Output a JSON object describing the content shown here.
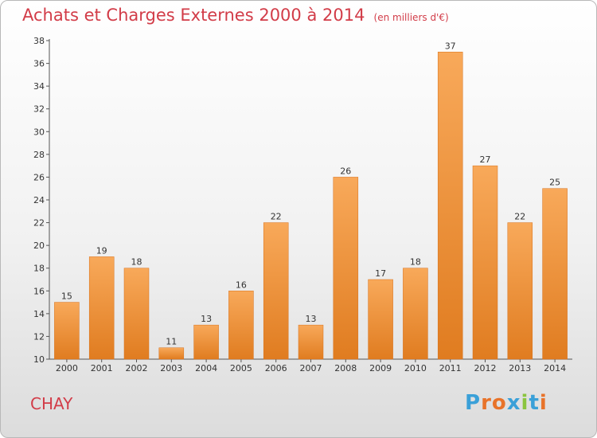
{
  "header": {
    "title": "Achats et Charges Externes 2000 à 2014",
    "subtitle": "(en milliers d'€)"
  },
  "footer": {
    "city": "CHAY",
    "brand": "Proxiti"
  },
  "colors": {
    "title": "#d23c48",
    "bar_light": "#f8a95a",
    "bar_dark": "#e07c20",
    "brand_letters": [
      "#3aa0d8",
      "#e8732a",
      "#e8732a",
      "#3aa0d8",
      "#8bc53f",
      "#3aa0d8",
      "#e8732a"
    ]
  },
  "chart_data": {
    "type": "bar",
    "title": "Achats et Charges Externes 2000 à 2014",
    "subtitle": "(en milliers d'€)",
    "categories": [
      "2000",
      "2001",
      "2002",
      "2003",
      "2004",
      "2005",
      "2006",
      "2007",
      "2008",
      "2009",
      "2010",
      "2011",
      "2012",
      "2013",
      "2014"
    ],
    "values": [
      15,
      19,
      18,
      11,
      13,
      16,
      22,
      13,
      26,
      17,
      18,
      37,
      27,
      22,
      25
    ],
    "ylim": [
      10,
      38
    ],
    "yticks": [
      10,
      12,
      14,
      16,
      18,
      20,
      22,
      24,
      26,
      28,
      30,
      32,
      34,
      36,
      38
    ],
    "grid": false,
    "legend": "none"
  }
}
